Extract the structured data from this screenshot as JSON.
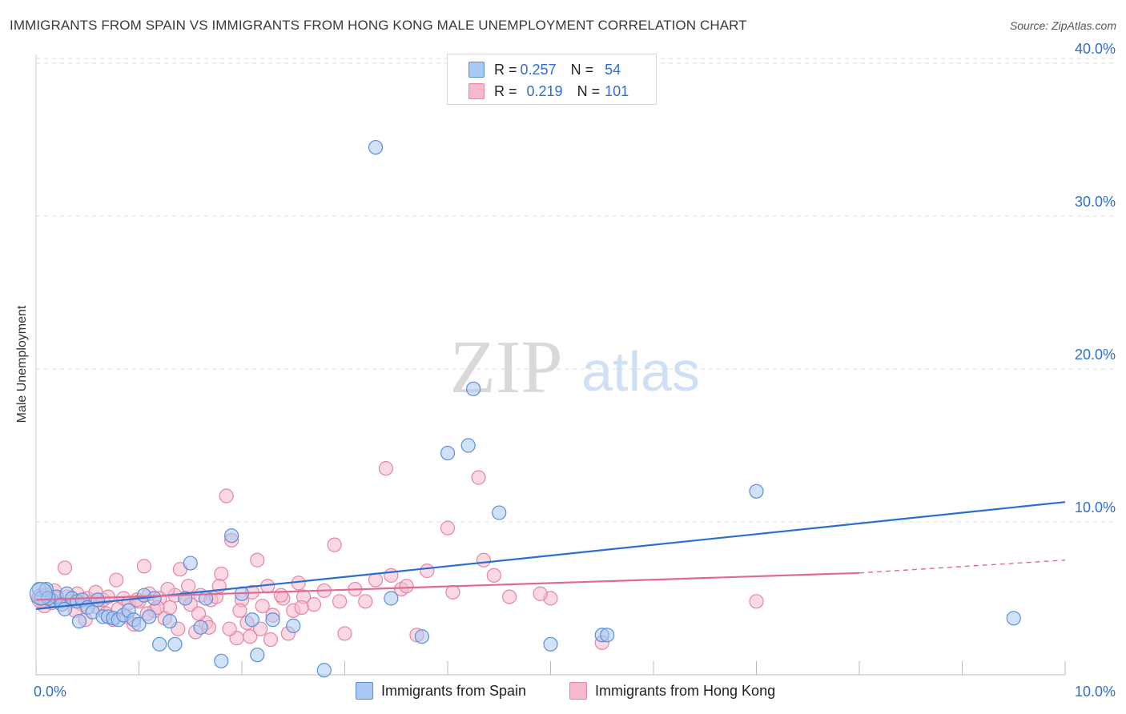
{
  "header": {
    "title": "IMMIGRANTS FROM SPAIN VS IMMIGRANTS FROM HONG KONG MALE UNEMPLOYMENT CORRELATION CHART",
    "source": "Source: ZipAtlas.com"
  },
  "legend": {
    "spain": {
      "r_label": "R =",
      "r_value": "0.257",
      "n_label": "N =",
      "n_value": "54"
    },
    "hongkong": {
      "r_label": "R =",
      "r_value": "0.219",
      "n_label": "N =",
      "n_value": "101"
    }
  },
  "watermark": {
    "zip": "ZIP",
    "atlas": "atlas"
  },
  "colors": {
    "spain_fill": "#a9c8f2",
    "spain_stroke": "#5a8fd8",
    "spain_line": "#2a6fd0",
    "hk_fill": "#f6b9cb",
    "hk_stroke": "#e784a5",
    "hk_line": "#e06a93",
    "axis_text": "#2f6dd0",
    "grid": "#dddddd"
  },
  "chart_data": {
    "type": "scatter",
    "title": "IMMIGRANTS FROM SPAIN VS IMMIGRANTS FROM HONG KONG MALE UNEMPLOYMENT CORRELATION CHART",
    "xlabel": "",
    "ylabel": "Male Unemployment",
    "xlim": [
      0,
      10
    ],
    "ylim": [
      0,
      40
    ],
    "x_tick_labels": [
      {
        "value": 0,
        "label": "0.0%"
      },
      {
        "value": 10,
        "label": "10.0%"
      }
    ],
    "y_tick_labels": [
      {
        "value": 10,
        "label": "10.0%"
      },
      {
        "value": 20,
        "label": "20.0%"
      },
      {
        "value": 30,
        "label": "30.0%"
      },
      {
        "value": 40,
        "label": "40.0%"
      }
    ],
    "legend_position": "top-center",
    "series": [
      {
        "name": "Immigrants from Spain",
        "color": "#a9c8f2",
        "trend": {
          "x": [
            0,
            10
          ],
          "y": [
            4.9,
            10.7
          ],
          "dashed_from": null
        },
        "points": [
          [
            0.03,
            5.6
          ],
          [
            0.05,
            5.0
          ],
          [
            0.1,
            5.6
          ],
          [
            0.15,
            4.9
          ],
          [
            0.2,
            5.1
          ],
          [
            0.25,
            4.6
          ],
          [
            0.28,
            4.3
          ],
          [
            0.3,
            5.3
          ],
          [
            0.35,
            5.0
          ],
          [
            0.4,
            4.8
          ],
          [
            0.45,
            4.9
          ],
          [
            0.5,
            4.4
          ],
          [
            0.55,
            4.1
          ],
          [
            0.6,
            4.9
          ],
          [
            0.65,
            3.8
          ],
          [
            0.7,
            3.8
          ],
          [
            0.75,
            3.7
          ],
          [
            0.8,
            3.6
          ],
          [
            0.85,
            3.9
          ],
          [
            0.9,
            4.2
          ],
          [
            0.95,
            3.6
          ],
          [
            1.0,
            3.3
          ],
          [
            1.05,
            5.2
          ],
          [
            1.1,
            3.8
          ],
          [
            1.15,
            5.0
          ],
          [
            1.2,
            2.0
          ],
          [
            1.3,
            3.5
          ],
          [
            1.35,
            2.0
          ],
          [
            1.45,
            5.0
          ],
          [
            1.6,
            3.1
          ],
          [
            1.65,
            5.0
          ],
          [
            1.8,
            0.9
          ],
          [
            1.9,
            9.1
          ],
          [
            2.0,
            5.3
          ],
          [
            2.1,
            3.6
          ],
          [
            2.15,
            1.3
          ],
          [
            2.3,
            3.6
          ],
          [
            2.8,
            0.3
          ],
          [
            3.3,
            34.5
          ],
          [
            3.45,
            5.0
          ],
          [
            3.75,
            2.5
          ],
          [
            4.0,
            14.5
          ],
          [
            4.2,
            15.0
          ],
          [
            4.25,
            18.7
          ],
          [
            4.5,
            10.6
          ],
          [
            5.0,
            2.0
          ],
          [
            5.5,
            2.6
          ],
          [
            5.55,
            2.6
          ],
          [
            7.0,
            12.0
          ],
          [
            9.5,
            3.7
          ],
          [
            0.12,
            5.0
          ],
          [
            0.42,
            3.5
          ],
          [
            1.5,
            7.3
          ],
          [
            2.5,
            3.2
          ]
        ]
      },
      {
        "name": "Immigrants from Hong Kong",
        "color": "#f6b9cb",
        "trend": {
          "x": [
            0,
            10
          ],
          "y": [
            4.9,
            7.6
          ],
          "dashed_from": 8.0
        },
        "points": [
          [
            0.03,
            5.1
          ],
          [
            0.06,
            4.9
          ],
          [
            0.1,
            5.2
          ],
          [
            0.15,
            4.7
          ],
          [
            0.2,
            5.0
          ],
          [
            0.25,
            4.6
          ],
          [
            0.3,
            5.1
          ],
          [
            0.35,
            4.8
          ],
          [
            0.4,
            5.3
          ],
          [
            0.45,
            4.6
          ],
          [
            0.5,
            5.0
          ],
          [
            0.55,
            4.8
          ],
          [
            0.6,
            4.4
          ],
          [
            0.65,
            4.9
          ],
          [
            0.7,
            5.1
          ],
          [
            0.75,
            3.6
          ],
          [
            0.8,
            4.3
          ],
          [
            0.85,
            5.0
          ],
          [
            0.9,
            4.7
          ],
          [
            0.95,
            3.3
          ],
          [
            1.0,
            4.8
          ],
          [
            1.05,
            7.1
          ],
          [
            1.1,
            5.3
          ],
          [
            1.15,
            4.2
          ],
          [
            1.2,
            5.0
          ],
          [
            1.25,
            3.7
          ],
          [
            1.3,
            4.4
          ],
          [
            1.35,
            5.2
          ],
          [
            1.4,
            6.9
          ],
          [
            1.45,
            5.0
          ],
          [
            1.5,
            4.6
          ],
          [
            1.55,
            2.8
          ],
          [
            1.6,
            5.2
          ],
          [
            1.65,
            3.4
          ],
          [
            1.7,
            4.9
          ],
          [
            1.75,
            5.1
          ],
          [
            1.8,
            6.6
          ],
          [
            1.85,
            11.7
          ],
          [
            1.9,
            8.8
          ],
          [
            1.95,
            2.4
          ],
          [
            2.0,
            4.9
          ],
          [
            2.05,
            3.4
          ],
          [
            2.1,
            5.4
          ],
          [
            2.15,
            7.5
          ],
          [
            2.2,
            4.5
          ],
          [
            2.25,
            5.8
          ],
          [
            2.3,
            3.9
          ],
          [
            2.4,
            5.0
          ],
          [
            2.45,
            2.7
          ],
          [
            2.5,
            4.2
          ],
          [
            2.55,
            6.0
          ],
          [
            2.6,
            5.1
          ],
          [
            2.7,
            4.6
          ],
          [
            2.8,
            5.5
          ],
          [
            2.9,
            8.5
          ],
          [
            2.95,
            4.8
          ],
          [
            3.0,
            2.7
          ],
          [
            3.1,
            5.6
          ],
          [
            3.2,
            4.8
          ],
          [
            3.3,
            6.2
          ],
          [
            3.4,
            13.5
          ],
          [
            3.45,
            6.5
          ],
          [
            3.55,
            5.6
          ],
          [
            3.7,
            2.6
          ],
          [
            3.8,
            6.8
          ],
          [
            4.0,
            9.6
          ],
          [
            4.05,
            5.4
          ],
          [
            4.3,
            12.9
          ],
          [
            4.35,
            7.5
          ],
          [
            4.45,
            6.5
          ],
          [
            4.6,
            5.1
          ],
          [
            5.0,
            5.0
          ],
          [
            5.5,
            2.1
          ],
          [
            7.0,
            4.8
          ],
          [
            0.08,
            4.5
          ],
          [
            0.18,
            5.5
          ],
          [
            0.38,
            4.2
          ],
          [
            0.48,
            3.6
          ],
          [
            0.58,
            5.4
          ],
          [
            0.68,
            4.0
          ],
          [
            0.78,
            6.2
          ],
          [
            0.88,
            3.8
          ],
          [
            0.98,
            4.9
          ],
          [
            1.08,
            4.0
          ],
          [
            1.18,
            4.4
          ],
          [
            1.28,
            5.6
          ],
          [
            1.38,
            3.0
          ],
          [
            1.48,
            5.8
          ],
          [
            1.58,
            4.0
          ],
          [
            1.68,
            3.1
          ],
          [
            1.78,
            5.8
          ],
          [
            1.88,
            3.0
          ],
          [
            1.98,
            4.2
          ],
          [
            2.08,
            2.5
          ],
          [
            2.18,
            3.0
          ],
          [
            2.28,
            2.3
          ],
          [
            2.38,
            5.2
          ],
          [
            2.58,
            4.4
          ],
          [
            3.6,
            5.8
          ],
          [
            4.9,
            5.3
          ],
          [
            0.28,
            7.0
          ]
        ]
      }
    ]
  },
  "bottom_legend": {
    "spain": "Immigrants from Spain",
    "hongkong": "Immigrants from Hong Kong"
  }
}
